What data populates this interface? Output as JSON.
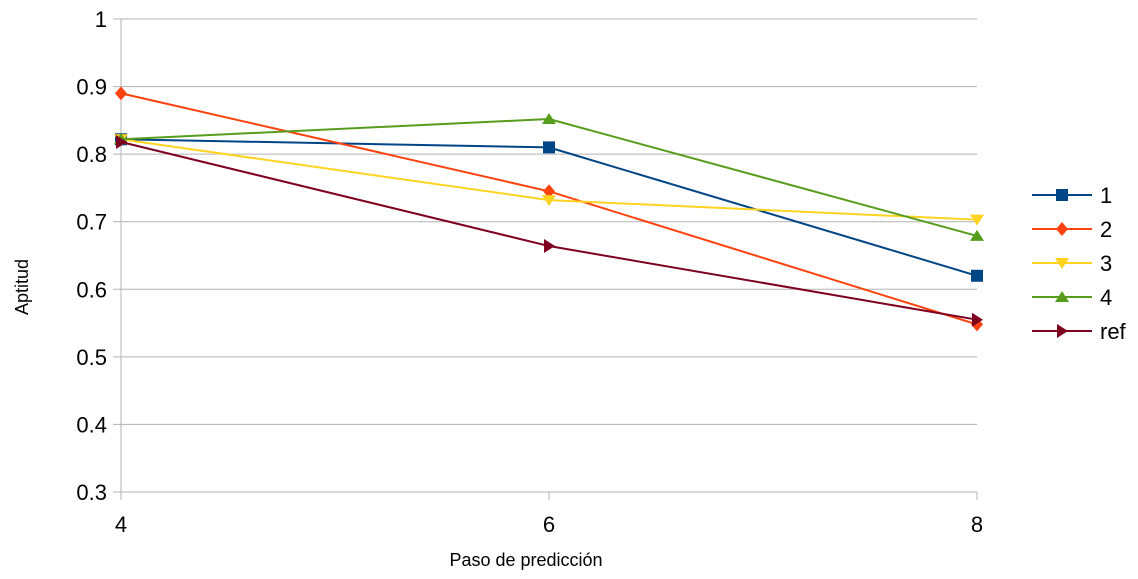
{
  "chart_data": {
    "type": "line",
    "x": [
      4,
      6,
      8
    ],
    "xlabel": "Paso de predicción",
    "ylabel": "Aptitud",
    "xlim": [
      4,
      8
    ],
    "ylim": [
      0.3,
      1
    ],
    "x_ticks": [
      "4",
      "6",
      "8"
    ],
    "y_ticks": [
      "0.3",
      "0.4",
      "0.5",
      "0.6",
      "0.7",
      "0.8",
      "0.9",
      "1"
    ],
    "grid": true,
    "legend_position": "right",
    "series": [
      {
        "name": "1",
        "values": [
          0.822,
          0.81,
          0.62
        ],
        "color": "#004586",
        "marker": "square"
      },
      {
        "name": "2",
        "values": [
          0.89,
          0.745,
          0.548
        ],
        "color": "#ff420e",
        "marker": "diamond"
      },
      {
        "name": "3",
        "values": [
          0.822,
          0.732,
          0.703
        ],
        "color": "#ffd320",
        "marker": "triangle-down"
      },
      {
        "name": "4",
        "values": [
          0.822,
          0.852,
          0.679
        ],
        "color": "#579d1c",
        "marker": "triangle-up"
      },
      {
        "name": "ref",
        "values": [
          0.818,
          0.664,
          0.555
        ],
        "color": "#7e0021",
        "marker": "triangle-right"
      }
    ]
  }
}
